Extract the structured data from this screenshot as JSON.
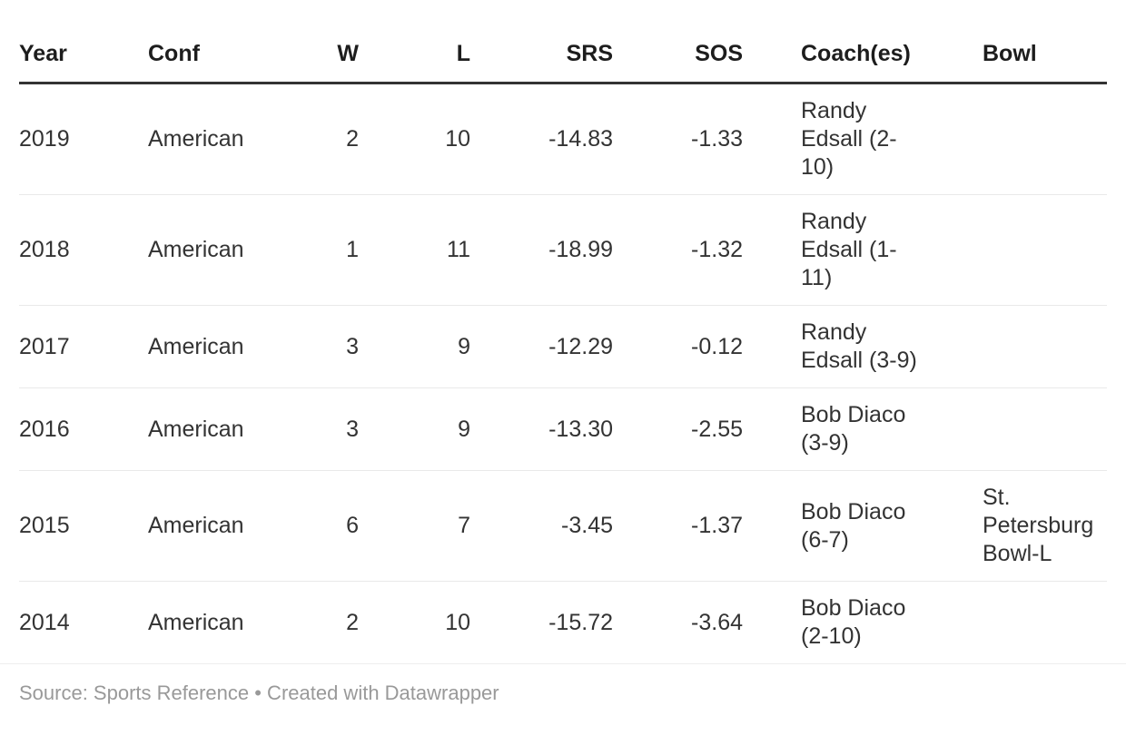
{
  "chart_data": {
    "type": "table",
    "columns": [
      {
        "label": "Year",
        "align": "left"
      },
      {
        "label": "Conf",
        "align": "left"
      },
      {
        "label": "W",
        "align": "right"
      },
      {
        "label": "L",
        "align": "right"
      },
      {
        "label": "SRS",
        "align": "right"
      },
      {
        "label": "SOS",
        "align": "right"
      },
      {
        "label": "Coach(es)",
        "align": "left"
      },
      {
        "label": "Bowl",
        "align": "left"
      }
    ],
    "rows": [
      {
        "year": "2019",
        "conf": "American",
        "w": "2",
        "l": "10",
        "srs": "-14.83",
        "sos": "-1.33",
        "coach": "Randy Edsall (2-10)",
        "bowl": ""
      },
      {
        "year": "2018",
        "conf": "American",
        "w": "1",
        "l": "11",
        "srs": "-18.99",
        "sos": "-1.32",
        "coach": "Randy Edsall (1-11)",
        "bowl": ""
      },
      {
        "year": "2017",
        "conf": "American",
        "w": "3",
        "l": "9",
        "srs": "-12.29",
        "sos": "-0.12",
        "coach": "Randy Edsall (3-9)",
        "bowl": ""
      },
      {
        "year": "2016",
        "conf": "American",
        "w": "3",
        "l": "9",
        "srs": "-13.30",
        "sos": "-2.55",
        "coach": "Bob Diaco (3-9)",
        "bowl": ""
      },
      {
        "year": "2015",
        "conf": "American",
        "w": "6",
        "l": "7",
        "srs": "-3.45",
        "sos": "-1.37",
        "coach": "Bob Diaco (6-7)",
        "bowl": "St. Petersburg Bowl-L"
      },
      {
        "year": "2014",
        "conf": "American",
        "w": "2",
        "l": "10",
        "srs": "-15.72",
        "sos": "-3.64",
        "coach": "Bob Diaco (2-10)",
        "bowl": ""
      }
    ]
  },
  "footer": {
    "source_text": "Source: Sports Reference • Created with Datawrapper"
  },
  "colors": {
    "background": "#ffffff",
    "header_text": "#1d1d1d",
    "body_text": "#333333",
    "header_rule": "#333333",
    "row_rule": "#e9e9e9",
    "footer_text": "#999999"
  }
}
